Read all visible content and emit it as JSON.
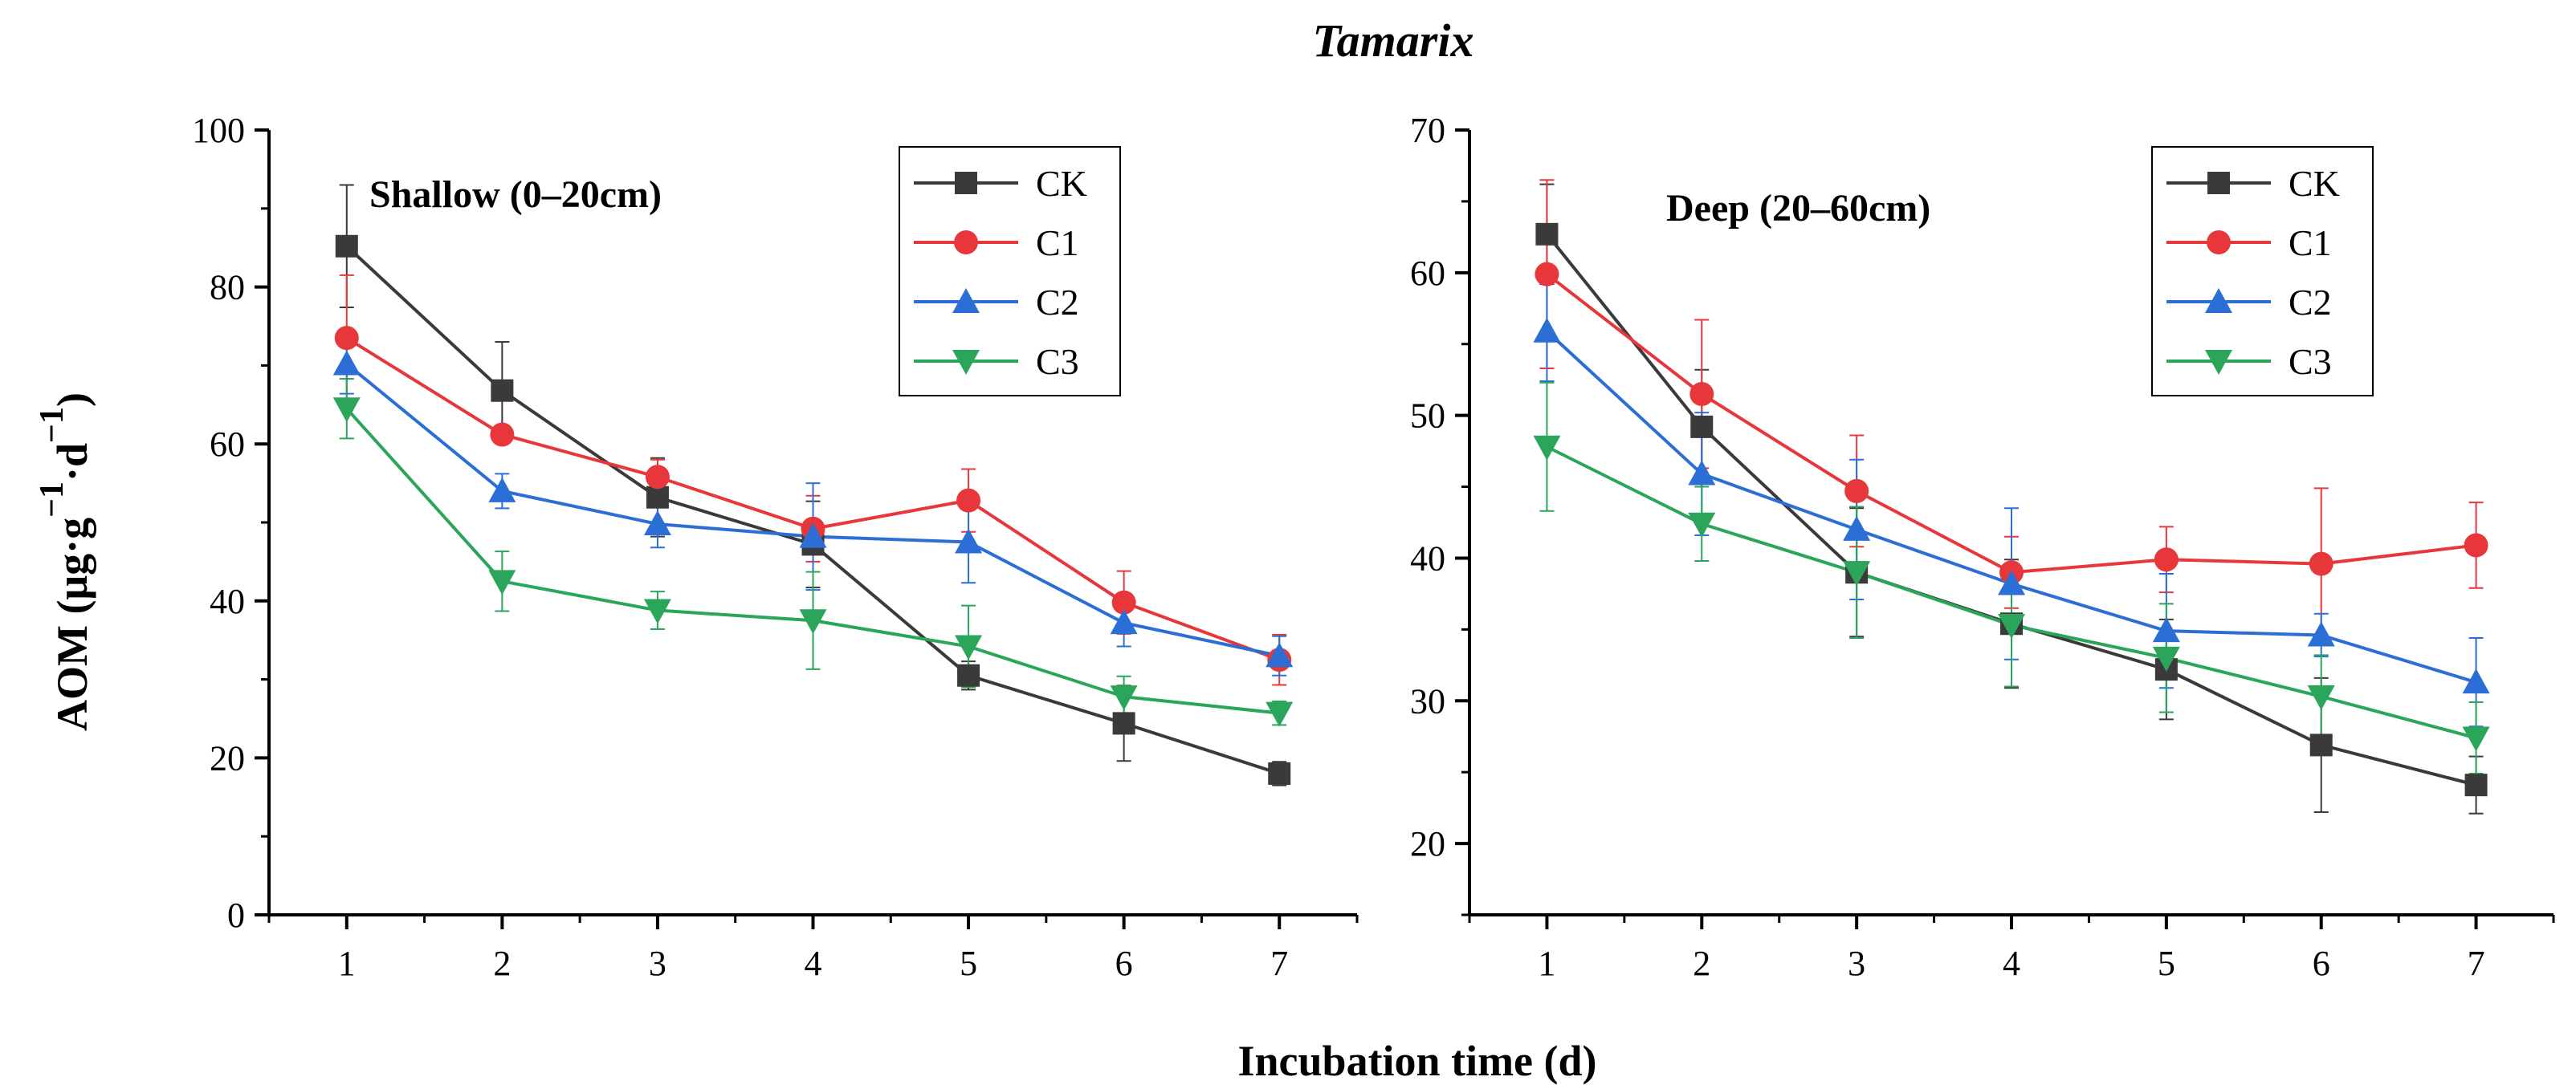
{
  "figure": {
    "title": "Tamarix",
    "xlabel": "Incubation time (d)",
    "ylabel": {
      "main": "AOM (μg·g",
      "sup1": "−1",
      "mid": "·d",
      "sup2": "−1",
      "end": ")"
    }
  },
  "series_colors": {
    "CK": "#3a3a3a",
    "C1": "#e8373a",
    "C2": "#2b6fd6",
    "C3": "#2aa55a"
  },
  "series_markers": {
    "CK": "square",
    "C1": "circle",
    "C2": "triangle-up",
    "C3": "triangle-down"
  },
  "chart_data": [
    {
      "type": "line",
      "panel_label": "Shallow (0–20cm)",
      "x": [
        1,
        2,
        3,
        4,
        5,
        6,
        7
      ],
      "xticks": [
        "1",
        "2",
        "3",
        "4",
        "5",
        "6",
        "7"
      ],
      "xlim": [
        0.5,
        7.5
      ],
      "ylim": [
        0,
        100
      ],
      "yticks": [
        "0",
        "20",
        "40",
        "60",
        "80",
        "100"
      ],
      "ytick_values": [
        0,
        20,
        40,
        60,
        80,
        100
      ],
      "legend_position": "top-right",
      "series": [
        {
          "name": "CK",
          "values": [
            85.2,
            66.8,
            53.2,
            47.2,
            30.5,
            24.4,
            18.0
          ],
          "errors": [
            7.8,
            6.2,
            5.0,
            5.5,
            1.8,
            4.8,
            1.5
          ]
        },
        {
          "name": "C1",
          "values": [
            73.5,
            61.2,
            55.8,
            49.2,
            52.8,
            39.8,
            32.5
          ],
          "errors": [
            8.0,
            1.0,
            2.2,
            4.2,
            4.0,
            4.0,
            3.2
          ]
        },
        {
          "name": "C2",
          "values": [
            70.2,
            54.0,
            49.8,
            48.2,
            47.5,
            37.2,
            33.0
          ],
          "errors": [
            3.8,
            2.2,
            3.0,
            6.8,
            5.2,
            3.0,
            2.5
          ]
        },
        {
          "name": "C3",
          "values": [
            64.5,
            42.5,
            38.8,
            37.5,
            34.2,
            27.8,
            25.7
          ],
          "errors": [
            3.8,
            3.8,
            2.4,
            6.2,
            5.2,
            2.6,
            1.5
          ]
        }
      ]
    },
    {
      "type": "line",
      "panel_label": "Deep (20–60cm)",
      "x": [
        1,
        2,
        3,
        4,
        5,
        6,
        7
      ],
      "xticks": [
        "1",
        "2",
        "3",
        "4",
        "5",
        "6",
        "7"
      ],
      "xlim": [
        0.5,
        7.5
      ],
      "ylim": [
        15,
        70
      ],
      "yticks": [
        "20",
        "30",
        "40",
        "50",
        "60",
        "70"
      ],
      "ytick_values": [
        20,
        30,
        40,
        50,
        60,
        70
      ],
      "legend_position": "top-right",
      "series": [
        {
          "name": "CK",
          "values": [
            62.7,
            49.2,
            39.0,
            35.4,
            32.2,
            26.9,
            24.1
          ],
          "errors": [
            3.5,
            4.0,
            4.5,
            4.5,
            3.5,
            4.7,
            2.0
          ]
        },
        {
          "name": "C1",
          "values": [
            59.9,
            51.5,
            44.7,
            39.0,
            39.9,
            39.6,
            40.9
          ],
          "errors": [
            6.6,
            5.2,
            3.9,
            2.5,
            2.3,
            5.3,
            3.0
          ]
        },
        {
          "name": "C2",
          "values": [
            55.9,
            45.9,
            42.0,
            38.2,
            34.9,
            34.6,
            31.3
          ],
          "errors": [
            3.5,
            4.3,
            4.9,
            5.3,
            4.0,
            1.5,
            3.1
          ]
        },
        {
          "name": "C3",
          "values": [
            47.8,
            42.4,
            39.0,
            35.3,
            33.0,
            30.3,
            27.4
          ],
          "errors": [
            4.5,
            2.6,
            4.6,
            4.3,
            3.8,
            2.9,
            2.5
          ]
        }
      ]
    }
  ]
}
